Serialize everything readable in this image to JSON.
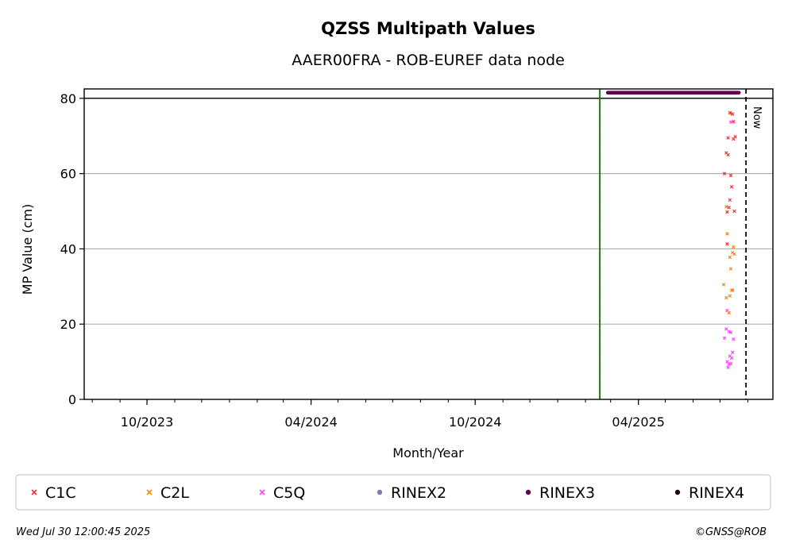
{
  "chart_data": {
    "type": "scatter",
    "title": "QZSS Multipath Values",
    "subtitle": "AAER00FRA - ROB-EUREF data node",
    "xlabel": "Month/Year",
    "ylabel": "MP Value (cm)",
    "ylim": [
      0,
      82.5
    ],
    "xlim": [
      "2023-07-23",
      "2025-08-29"
    ],
    "y_ticks": [
      0,
      20,
      40,
      60,
      80
    ],
    "x_ticks": [
      {
        "date": "2023-10-01",
        "label": "10/2023"
      },
      {
        "date": "2024-04-01",
        "label": "04/2024"
      },
      {
        "date": "2024-10-01",
        "label": "10/2024"
      },
      {
        "date": "2025-04-01",
        "label": "04/2025"
      }
    ],
    "grid": "horizontal",
    "reference_line_y": 80,
    "event_line_date": "2025-02-17",
    "now_line": {
      "date": "2025-07-30",
      "label": "Now"
    },
    "legend_position": "bottom",
    "series": [
      {
        "name": "C1C",
        "color": "#ee3333",
        "marker": "x",
        "points": [
          [
            "2025-07-06",
            60
          ],
          [
            "2025-07-08",
            65.5
          ],
          [
            "2025-07-09",
            41.3
          ],
          [
            "2025-07-09",
            49.8
          ],
          [
            "2025-07-10",
            65
          ],
          [
            "2025-07-10",
            69.5
          ],
          [
            "2025-07-11",
            51
          ],
          [
            "2025-07-12",
            76.2
          ],
          [
            "2025-07-12",
            53
          ],
          [
            "2025-07-13",
            59.5
          ],
          [
            "2025-07-14",
            56.5
          ],
          [
            "2025-07-15",
            75.8
          ],
          [
            "2025-07-16",
            69.2
          ],
          [
            "2025-07-16",
            73.8
          ],
          [
            "2025-07-17",
            50
          ],
          [
            "2025-07-18",
            69.8
          ]
        ]
      },
      {
        "name": "C2L",
        "color": "#ff8800",
        "marker": "x",
        "points": [
          [
            "2025-07-05",
            30.5
          ],
          [
            "2025-07-08",
            51.2
          ],
          [
            "2025-07-08",
            27
          ],
          [
            "2025-07-09",
            44
          ],
          [
            "2025-07-11",
            23
          ],
          [
            "2025-07-12",
            37.8
          ],
          [
            "2025-07-12",
            27.5
          ],
          [
            "2025-07-13",
            34.7
          ],
          [
            "2025-07-14",
            29
          ],
          [
            "2025-07-15",
            39
          ],
          [
            "2025-07-16",
            40.5
          ],
          [
            "2025-07-17",
            38.6
          ],
          [
            "2025-07-13",
            76
          ]
        ]
      },
      {
        "name": "C5Q",
        "color": "#ff44ff",
        "marker": "x",
        "points": [
          [
            "2025-07-06",
            16.3
          ],
          [
            "2025-07-08",
            18.7
          ],
          [
            "2025-07-09",
            23.6
          ],
          [
            "2025-07-09",
            10
          ],
          [
            "2025-07-10",
            8.5
          ],
          [
            "2025-07-11",
            9.3
          ],
          [
            "2025-07-11",
            18
          ],
          [
            "2025-07-12",
            11.5
          ],
          [
            "2025-07-13",
            9.5
          ],
          [
            "2025-07-13",
            17.8
          ],
          [
            "2025-07-14",
            11
          ],
          [
            "2025-07-15",
            29
          ],
          [
            "2025-07-15",
            12.5
          ],
          [
            "2025-07-16",
            16
          ],
          [
            "2025-07-13",
            73.7
          ]
        ]
      },
      {
        "name": "RINEX2",
        "color": "#8877bb",
        "marker": "dot",
        "points": []
      },
      {
        "name": "RINEX3",
        "color": "#660055",
        "marker": "dot",
        "range": [
          "2025-02-26",
          "2025-07-22"
        ],
        "y": 81.5
      },
      {
        "name": "RINEX4",
        "color": "#220022",
        "marker": "dot",
        "points": []
      }
    ]
  },
  "footer": {
    "timestamp": "Wed Jul 30 12:00:45 2025",
    "copyright": "©GNSS@ROB"
  }
}
